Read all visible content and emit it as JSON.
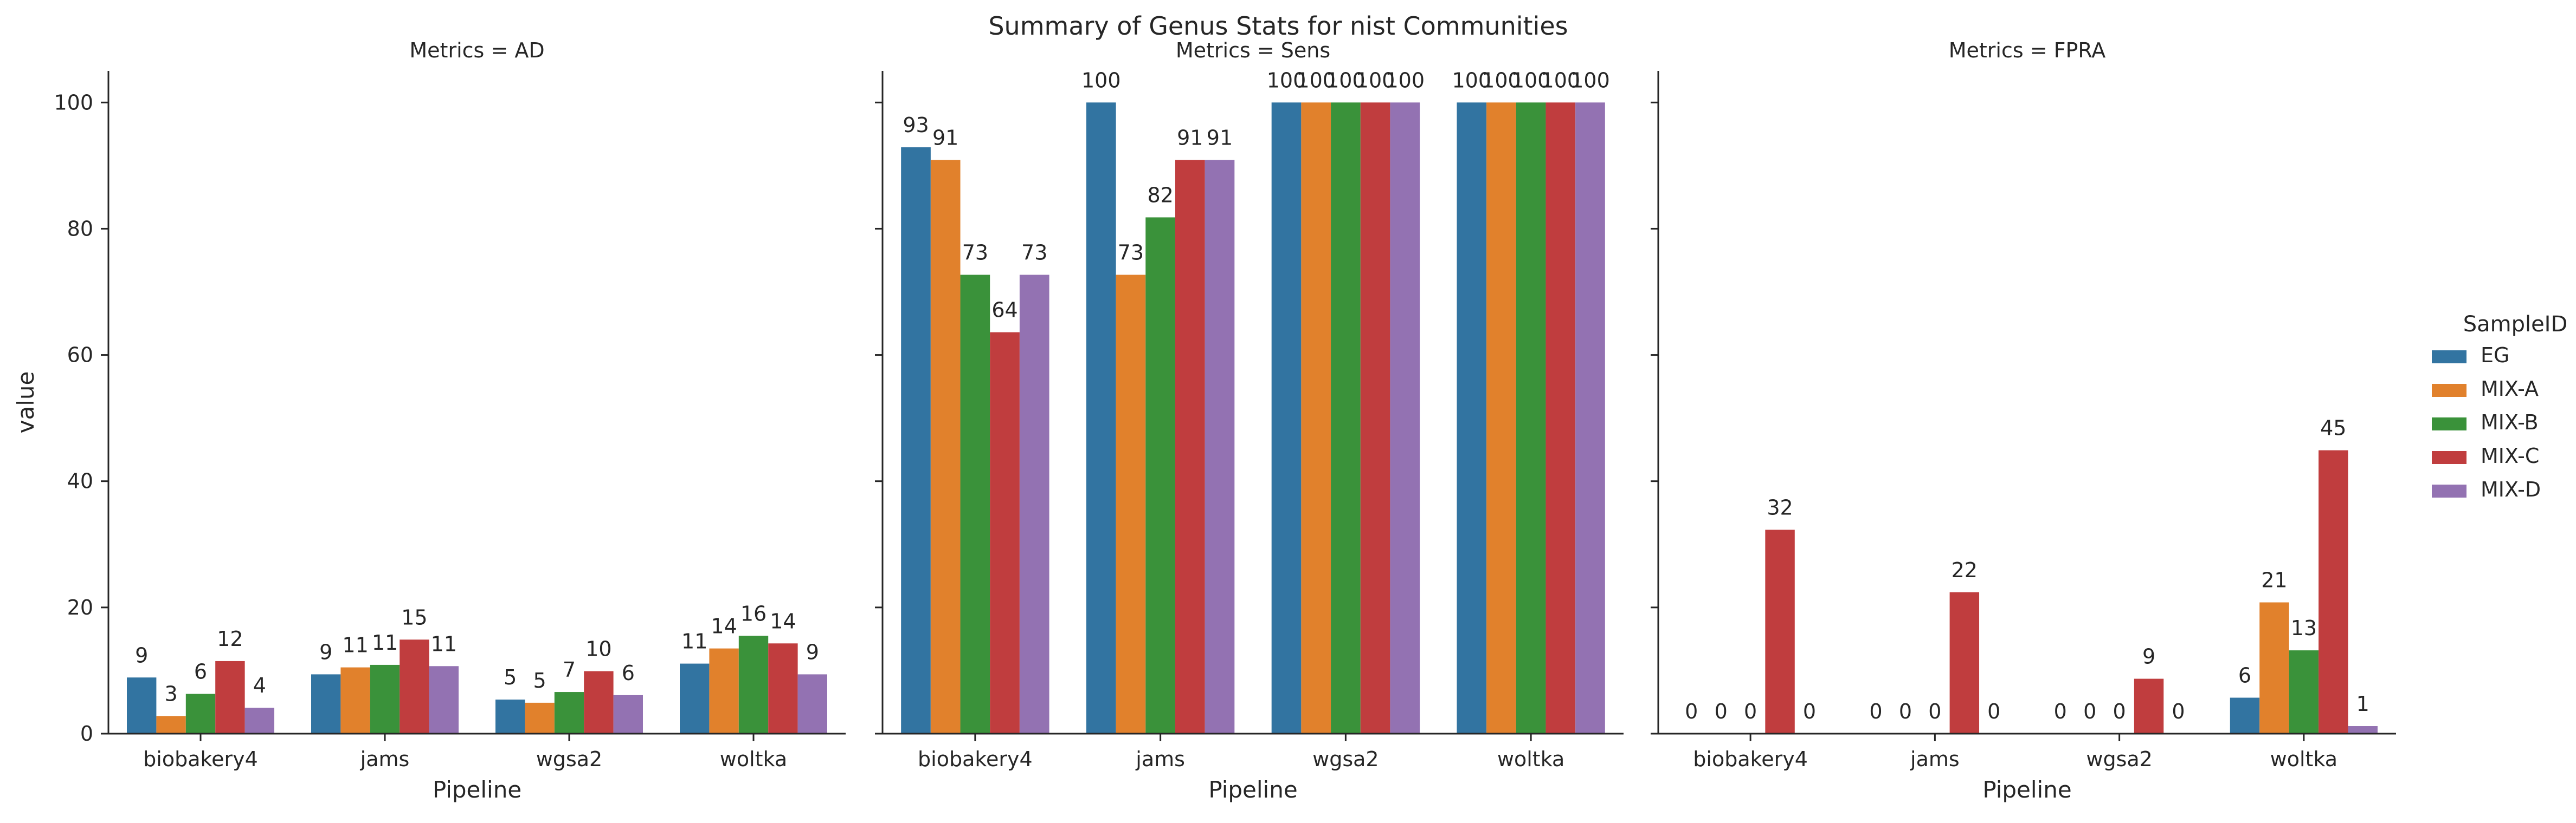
{
  "chart_data": {
    "type": "bar",
    "title": "Summary of Genus Stats for nist Communities",
    "xlabel": "Pipeline",
    "ylabel": "value",
    "ylim": [
      0,
      105
    ],
    "yticks": [
      0,
      20,
      40,
      60,
      80,
      100
    ],
    "categories": [
      "biobakery4",
      "jams",
      "wgsa2",
      "woltka"
    ],
    "legend": {
      "title": "SampleID",
      "placement": "center-right",
      "entries": [
        "EG",
        "MIX-A",
        "MIX-B",
        "MIX-C",
        "MIX-D"
      ]
    },
    "colors": {
      "EG": "#3274a1",
      "MIX-A": "#e1812c",
      "MIX-B": "#3a923a",
      "MIX-C": "#c03d3e",
      "MIX-D": "#9372b2"
    },
    "facets": [
      {
        "title": "Metrics = AD",
        "series": [
          {
            "name": "EG",
            "values": [
              8.9,
              9.4,
              5.4,
              11.1
            ],
            "labels": [
              "9",
              "9",
              "5",
              "11"
            ]
          },
          {
            "name": "MIX-A",
            "values": [
              2.8,
              10.5,
              4.9,
              13.5
            ],
            "labels": [
              "3",
              "11",
              "5",
              "14"
            ]
          },
          {
            "name": "MIX-B",
            "values": [
              6.3,
              10.9,
              6.6,
              15.5
            ],
            "labels": [
              "6",
              "11",
              "7",
              "16"
            ]
          },
          {
            "name": "MIX-C",
            "values": [
              11.5,
              14.9,
              9.9,
              14.3
            ],
            "labels": [
              "12",
              "15",
              "10",
              "14"
            ]
          },
          {
            "name": "MIX-D",
            "values": [
              4.1,
              10.7,
              6.1,
              9.4
            ],
            "labels": [
              "4",
              "11",
              "6",
              "9"
            ]
          }
        ]
      },
      {
        "title": "Metrics = Sens",
        "series": [
          {
            "name": "EG",
            "values": [
              92.9,
              100,
              100,
              100
            ],
            "labels": [
              "93",
              "100",
              "100",
              "100"
            ]
          },
          {
            "name": "MIX-A",
            "values": [
              90.9,
              72.7,
              100,
              100
            ],
            "labels": [
              "91",
              "73",
              "100",
              "100"
            ]
          },
          {
            "name": "MIX-B",
            "values": [
              72.7,
              81.8,
              100,
              100
            ],
            "labels": [
              "73",
              "82",
              "100",
              "100"
            ]
          },
          {
            "name": "MIX-C",
            "values": [
              63.6,
              90.9,
              100,
              100
            ],
            "labels": [
              "64",
              "91",
              "100",
              "100"
            ]
          },
          {
            "name": "MIX-D",
            "values": [
              72.7,
              90.9,
              100,
              100
            ],
            "labels": [
              "73",
              "91",
              "100",
              "100"
            ]
          }
        ]
      },
      {
        "title": "Metrics = FPRA",
        "series": [
          {
            "name": "EG",
            "values": [
              0,
              0,
              0,
              5.7
            ],
            "labels": [
              "0",
              "0",
              "0",
              "6"
            ]
          },
          {
            "name": "MIX-A",
            "values": [
              0,
              0,
              0,
              20.8
            ],
            "labels": [
              "0",
              "0",
              "0",
              "21"
            ]
          },
          {
            "name": "MIX-B",
            "values": [
              0,
              0,
              0,
              13.2
            ],
            "labels": [
              "0",
              "0",
              "0",
              "13"
            ]
          },
          {
            "name": "MIX-C",
            "values": [
              32.3,
              22.4,
              8.7,
              44.9
            ],
            "labels": [
              "32",
              "22",
              "9",
              "45"
            ]
          },
          {
            "name": "MIX-D",
            "values": [
              0,
              0,
              0,
              1.2
            ],
            "labels": [
              "0",
              "0",
              "0",
              "1"
            ]
          }
        ]
      }
    ]
  }
}
